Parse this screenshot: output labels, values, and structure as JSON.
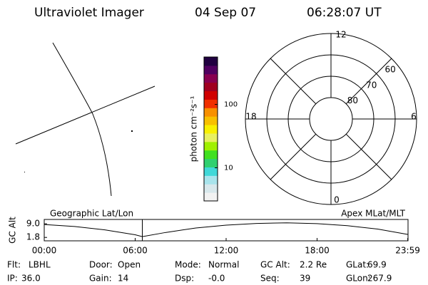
{
  "header": {
    "title": "Ultraviolet Imager",
    "date": "04 Sep 07",
    "time": "06:28:07 UT"
  },
  "colorbar": {
    "label": "photon cm⁻²s⁻¹",
    "log_scale": true,
    "ylim": [
      3,
      560
    ],
    "yticks": [
      10,
      100
    ],
    "colors": [
      "#f2f2f2",
      "#d8e8ec",
      "#a8e4ec",
      "#40d8d8",
      "#30d070",
      "#40e020",
      "#a0f000",
      "#e8f060",
      "#f8f000",
      "#f8c000",
      "#f89000",
      "#f03000",
      "#d00000",
      "#a00020",
      "#880050",
      "#500060",
      "#200040"
    ]
  },
  "polar": {
    "label": "Apex MLat/MLT",
    "mlt_labels": [
      "12",
      "18",
      "6",
      "0"
    ],
    "lat_labels": [
      {
        "value": 60,
        "label": "60"
      },
      {
        "value": 70,
        "label": "70"
      },
      {
        "value": 80,
        "label": "80"
      }
    ]
  },
  "geo_label": "Geographic Lat/Lon",
  "chart_data": {
    "type": "line",
    "y_label": "GC Alt",
    "x": [
      0,
      2,
      4,
      6,
      6.47,
      8,
      10,
      12,
      14,
      16,
      18,
      20,
      22,
      23.98
    ],
    "series": [
      {
        "name": "GC Alt",
        "color": "#000000",
        "values": [
          8.6,
          7.6,
          5.8,
          3.2,
          2.2,
          4.4,
          6.8,
          8.3,
          9.2,
          9.5,
          9.1,
          8.0,
          6.2,
          3.4
        ]
      }
    ],
    "xlim": [
      0,
      24
    ],
    "xticks": [
      {
        "value": 0,
        "label": "00:00"
      },
      {
        "value": 6,
        "label": "06:00"
      },
      {
        "value": 12,
        "label": "12:00"
      },
      {
        "value": 18,
        "label": "18:00"
      },
      {
        "value": 23.98,
        "label": "23:59"
      }
    ],
    "ylim": [
      0,
      11.3
    ],
    "yticks": [
      {
        "value": 9.0,
        "label": "9.0"
      },
      {
        "value": 1.8,
        "label": "1.8"
      }
    ],
    "marker_x": 6.47,
    "marker_color": "#d03030"
  },
  "footer": [
    [
      [
        "Flt:",
        "LBHL"
      ],
      [
        "Door:",
        "Open"
      ],
      [
        "Mode:",
        "Normal"
      ],
      [
        "GC Alt:",
        "2.2 Re"
      ],
      [
        "GLat:",
        "69.9"
      ]
    ],
    [
      [
        "IP:",
        "36.0"
      ],
      [
        "Gain:",
        "14"
      ],
      [
        "Dsp:",
        "-0.0"
      ],
      [
        "Seq:",
        "39"
      ],
      [
        "GLon:",
        "267.9"
      ]
    ]
  ]
}
